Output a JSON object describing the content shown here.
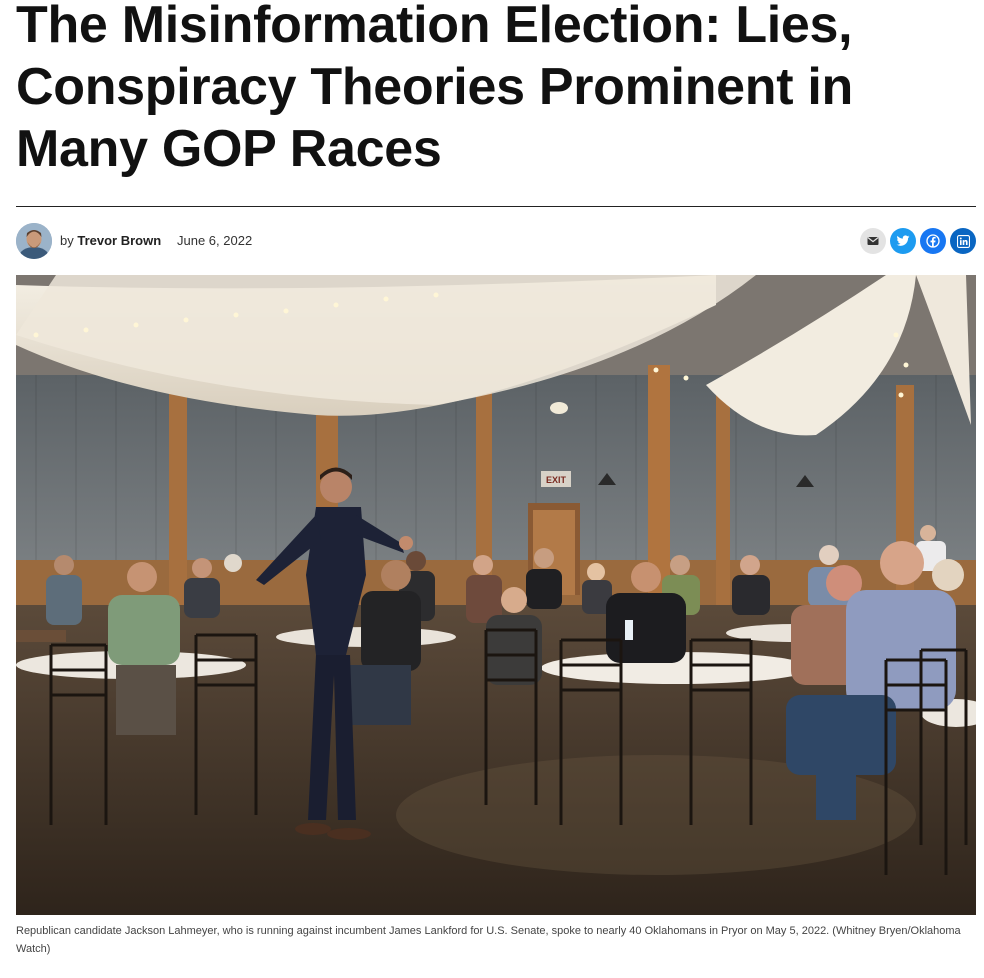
{
  "article": {
    "headline": "The Misinformation Election: Lies, Conspiracy Theories Prominent in Many GOP Races",
    "byline_prefix": "by",
    "author": "Trevor Brown",
    "date": "June 6, 2022"
  },
  "share": [
    {
      "name": "email",
      "icon": "envelope-icon",
      "color": "#e3e3e3"
    },
    {
      "name": "twitter",
      "icon": "twitter-icon",
      "color": "#1d9bf0"
    },
    {
      "name": "facebook",
      "icon": "facebook-icon",
      "color": "#1877f2"
    },
    {
      "name": "linkedin",
      "icon": "linkedin-icon",
      "color": "#0a66c2"
    }
  ],
  "photo": {
    "caption": "Republican candidate Jackson Lahmeyer, who is running against incumbent James Lankford for U.S. Senate, spoke to nearly 40 Oklahomans in Pryor on May 5, 2022. (Whitney Bryen/Oklahoma Watch)",
    "exit_sign": "EXIT"
  }
}
